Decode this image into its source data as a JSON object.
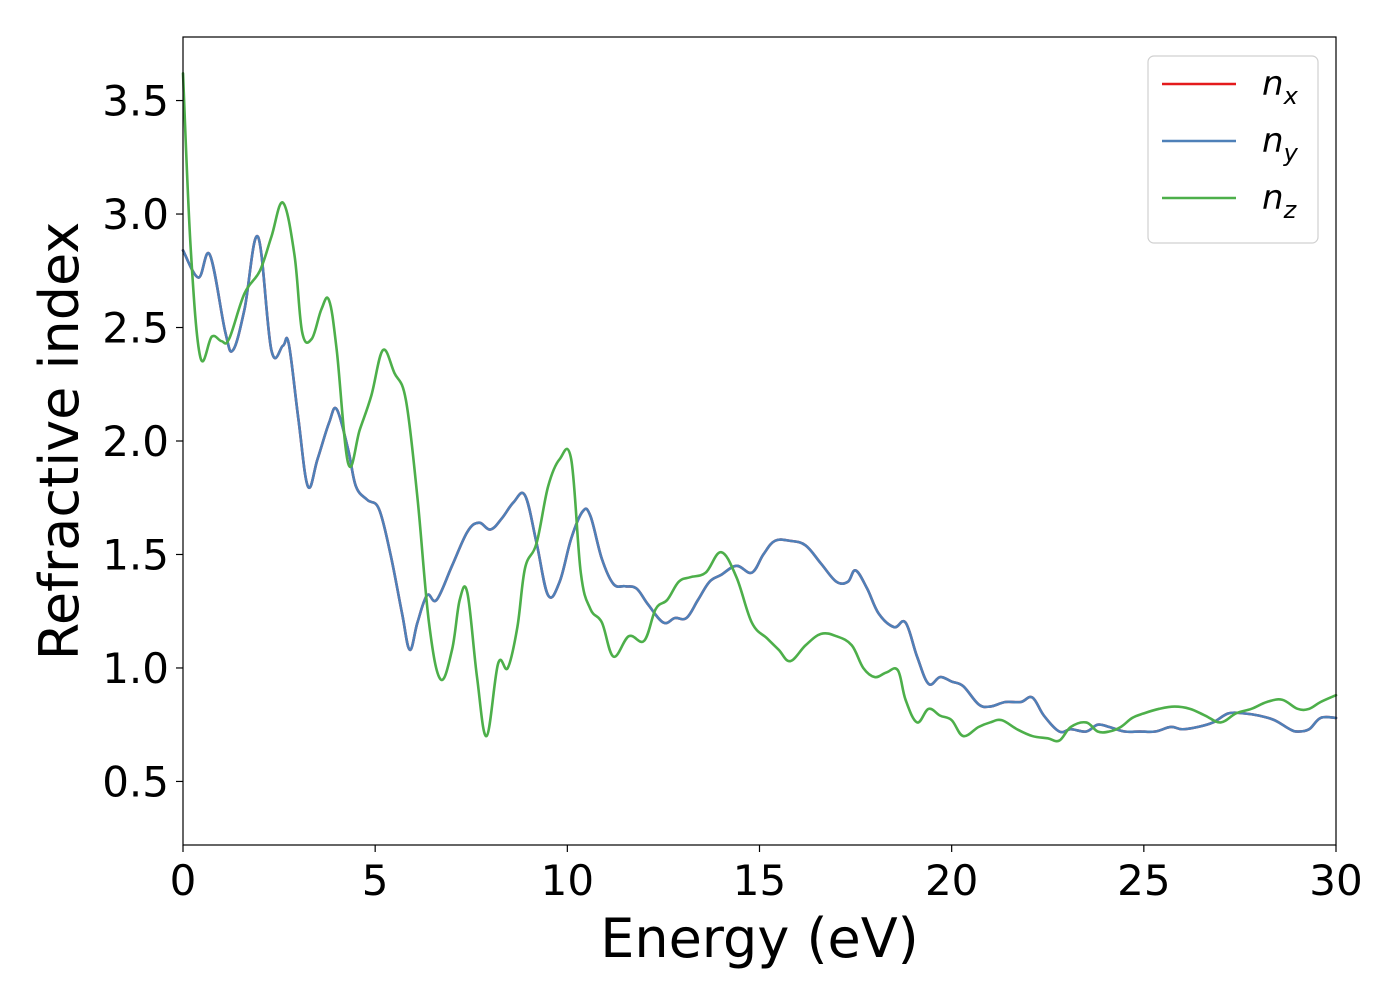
{
  "chart_data": {
    "type": "line",
    "title": "",
    "xlabel": "Energy (eV)",
    "ylabel": "Refractive index",
    "xlim": [
      0,
      30
    ],
    "ylim": [
      0.22,
      3.78
    ],
    "xticks": [
      0,
      5,
      10,
      15,
      20,
      25,
      30
    ],
    "xtick_labels": [
      "0",
      "5",
      "10",
      "15",
      "20",
      "25",
      "30"
    ],
    "yticks": [
      0.5,
      1.0,
      1.5,
      2.0,
      2.5,
      3.0,
      3.5
    ],
    "ytick_labels": [
      "0.5",
      "1.0",
      "1.5",
      "2.0",
      "2.5",
      "3.0",
      "3.5"
    ],
    "grid": false,
    "legend_position": "top-right",
    "series": [
      {
        "name": "n_x",
        "legend_base": "n",
        "legend_sub": "x",
        "color": "#e41a1c",
        "x": [
          0,
          0.4,
          0.7,
          1.1,
          1.3,
          1.6,
          1.95,
          2.3,
          2.6,
          2.75,
          3.0,
          3.25,
          3.5,
          3.8,
          4.0,
          4.3,
          4.5,
          4.8,
          5.1,
          5.4,
          5.7,
          5.9,
          6.1,
          6.35,
          6.6,
          7.0,
          7.4,
          7.7,
          8.0,
          8.3,
          8.6,
          8.9,
          9.2,
          9.5,
          9.8,
          10.1,
          10.4,
          10.6,
          10.9,
          11.2,
          11.5,
          11.8,
          12.1,
          12.5,
          12.8,
          13.1,
          13.4,
          13.7,
          14.0,
          14.4,
          14.8,
          15.1,
          15.4,
          15.8,
          16.2,
          16.6,
          17.0,
          17.3,
          17.5,
          17.8,
          18.1,
          18.5,
          18.8,
          19.1,
          19.4,
          19.7,
          20.0,
          20.3,
          20.7,
          21.0,
          21.4,
          21.8,
          22.1,
          22.4,
          22.8,
          23.1,
          23.5,
          23.8,
          24.1,
          24.5,
          24.9,
          25.3,
          25.7,
          26.0,
          26.4,
          26.8,
          27.2,
          27.6,
          28.0,
          28.4,
          28.8,
          29.0,
          29.3,
          29.6,
          30.0
        ],
        "y": [
          2.84,
          2.72,
          2.82,
          2.48,
          2.4,
          2.58,
          2.9,
          2.4,
          2.42,
          2.43,
          2.1,
          1.8,
          1.92,
          2.08,
          2.14,
          1.96,
          1.8,
          1.74,
          1.7,
          1.5,
          1.24,
          1.08,
          1.2,
          1.32,
          1.3,
          1.45,
          1.6,
          1.64,
          1.61,
          1.66,
          1.73,
          1.76,
          1.55,
          1.32,
          1.38,
          1.57,
          1.69,
          1.67,
          1.48,
          1.37,
          1.36,
          1.35,
          1.28,
          1.2,
          1.22,
          1.22,
          1.3,
          1.38,
          1.41,
          1.45,
          1.42,
          1.5,
          1.56,
          1.56,
          1.54,
          1.46,
          1.38,
          1.38,
          1.43,
          1.35,
          1.24,
          1.18,
          1.2,
          1.05,
          0.93,
          0.96,
          0.94,
          0.92,
          0.84,
          0.83,
          0.85,
          0.85,
          0.87,
          0.79,
          0.72,
          0.73,
          0.72,
          0.75,
          0.74,
          0.72,
          0.72,
          0.72,
          0.74,
          0.73,
          0.74,
          0.76,
          0.8,
          0.8,
          0.79,
          0.77,
          0.73,
          0.72,
          0.73,
          0.78,
          0.78
        ]
      },
      {
        "name": "n_y",
        "legend_base": "n",
        "legend_sub": "y",
        "color": "#4e80b8",
        "x": [
          0,
          0.4,
          0.7,
          1.1,
          1.3,
          1.6,
          1.95,
          2.3,
          2.6,
          2.75,
          3.0,
          3.25,
          3.5,
          3.8,
          4.0,
          4.3,
          4.5,
          4.8,
          5.1,
          5.4,
          5.7,
          5.9,
          6.1,
          6.35,
          6.6,
          7.0,
          7.4,
          7.7,
          8.0,
          8.3,
          8.6,
          8.9,
          9.2,
          9.5,
          9.8,
          10.1,
          10.4,
          10.6,
          10.9,
          11.2,
          11.5,
          11.8,
          12.1,
          12.5,
          12.8,
          13.1,
          13.4,
          13.7,
          14.0,
          14.4,
          14.8,
          15.1,
          15.4,
          15.8,
          16.2,
          16.6,
          17.0,
          17.3,
          17.5,
          17.8,
          18.1,
          18.5,
          18.8,
          19.1,
          19.4,
          19.7,
          20.0,
          20.3,
          20.7,
          21.0,
          21.4,
          21.8,
          22.1,
          22.4,
          22.8,
          23.1,
          23.5,
          23.8,
          24.1,
          24.5,
          24.9,
          25.3,
          25.7,
          26.0,
          26.4,
          26.8,
          27.2,
          27.6,
          28.0,
          28.4,
          28.8,
          29.0,
          29.3,
          29.6,
          30.0
        ],
        "y": [
          2.84,
          2.72,
          2.82,
          2.48,
          2.4,
          2.58,
          2.9,
          2.4,
          2.42,
          2.43,
          2.1,
          1.8,
          1.92,
          2.08,
          2.14,
          1.96,
          1.8,
          1.74,
          1.7,
          1.5,
          1.24,
          1.08,
          1.2,
          1.32,
          1.3,
          1.45,
          1.6,
          1.64,
          1.61,
          1.66,
          1.73,
          1.76,
          1.55,
          1.32,
          1.38,
          1.57,
          1.69,
          1.67,
          1.48,
          1.37,
          1.36,
          1.35,
          1.28,
          1.2,
          1.22,
          1.22,
          1.3,
          1.38,
          1.41,
          1.45,
          1.42,
          1.5,
          1.56,
          1.56,
          1.54,
          1.46,
          1.38,
          1.38,
          1.43,
          1.35,
          1.24,
          1.18,
          1.2,
          1.05,
          0.93,
          0.96,
          0.94,
          0.92,
          0.84,
          0.83,
          0.85,
          0.85,
          0.87,
          0.79,
          0.72,
          0.73,
          0.72,
          0.75,
          0.74,
          0.72,
          0.72,
          0.72,
          0.74,
          0.73,
          0.74,
          0.76,
          0.8,
          0.8,
          0.79,
          0.77,
          0.73,
          0.72,
          0.73,
          0.78,
          0.78
        ]
      },
      {
        "name": "n_z",
        "legend_base": "n",
        "legend_sub": "z",
        "color": "#4daf4a",
        "x": [
          0,
          0.2,
          0.45,
          0.75,
          1.0,
          1.2,
          1.6,
          2.0,
          2.3,
          2.6,
          2.9,
          3.1,
          3.35,
          3.6,
          3.8,
          4.0,
          4.3,
          4.6,
          4.9,
          5.2,
          5.5,
          5.8,
          6.1,
          6.4,
          6.7,
          7.0,
          7.2,
          7.4,
          7.65,
          7.9,
          8.2,
          8.45,
          8.7,
          8.9,
          9.2,
          9.5,
          9.8,
          10.1,
          10.35,
          10.6,
          10.9,
          11.2,
          11.6,
          12.0,
          12.3,
          12.6,
          12.9,
          13.2,
          13.6,
          14.0,
          14.4,
          14.8,
          15.2,
          15.5,
          15.8,
          16.2,
          16.6,
          17.0,
          17.4,
          17.7,
          18.0,
          18.3,
          18.6,
          18.8,
          19.1,
          19.4,
          19.7,
          20.0,
          20.3,
          20.7,
          21.0,
          21.3,
          21.7,
          22.1,
          22.5,
          22.8,
          23.1,
          23.5,
          23.8,
          24.1,
          24.4,
          24.7,
          25.0,
          25.4,
          25.8,
          26.2,
          26.6,
          27.0,
          27.4,
          27.8,
          28.2,
          28.6,
          29.0,
          29.3,
          29.6,
          30.0
        ],
        "y": [
          3.62,
          2.85,
          2.37,
          2.46,
          2.44,
          2.45,
          2.65,
          2.75,
          2.9,
          3.05,
          2.82,
          2.48,
          2.45,
          2.58,
          2.62,
          2.4,
          1.9,
          2.05,
          2.2,
          2.4,
          2.3,
          2.18,
          1.75,
          1.2,
          0.95,
          1.08,
          1.3,
          1.33,
          0.96,
          0.7,
          1.02,
          1.0,
          1.18,
          1.44,
          1.55,
          1.8,
          1.92,
          1.92,
          1.42,
          1.26,
          1.2,
          1.05,
          1.14,
          1.12,
          1.26,
          1.3,
          1.38,
          1.4,
          1.42,
          1.51,
          1.4,
          1.2,
          1.13,
          1.08,
          1.03,
          1.1,
          1.15,
          1.14,
          1.1,
          1.0,
          0.96,
          0.98,
          0.99,
          0.86,
          0.76,
          0.82,
          0.79,
          0.77,
          0.7,
          0.74,
          0.76,
          0.77,
          0.73,
          0.7,
          0.69,
          0.68,
          0.74,
          0.76,
          0.72,
          0.72,
          0.74,
          0.78,
          0.8,
          0.82,
          0.83,
          0.82,
          0.79,
          0.76,
          0.8,
          0.82,
          0.85,
          0.86,
          0.82,
          0.82,
          0.85,
          0.88
        ]
      }
    ]
  }
}
